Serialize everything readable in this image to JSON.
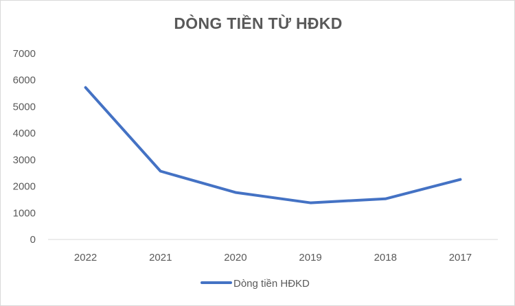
{
  "chart_data": {
    "type": "line",
    "title": "DÒNG TIỀN TỪ HĐKD",
    "xlabel": "",
    "ylabel": "",
    "categories": [
      "2022",
      "2021",
      "2020",
      "2019",
      "2018",
      "2017"
    ],
    "series": [
      {
        "name": "Dòng tiền HĐKD",
        "color": "#4472c4",
        "values": [
          5720,
          2570,
          1770,
          1380,
          1530,
          2260
        ]
      }
    ],
    "ylim": [
      0,
      7000
    ],
    "yticks": [
      "0",
      "1000",
      "2000",
      "3000",
      "4000",
      "5000",
      "6000",
      "7000"
    ],
    "grid": false,
    "legend": "bottom"
  }
}
